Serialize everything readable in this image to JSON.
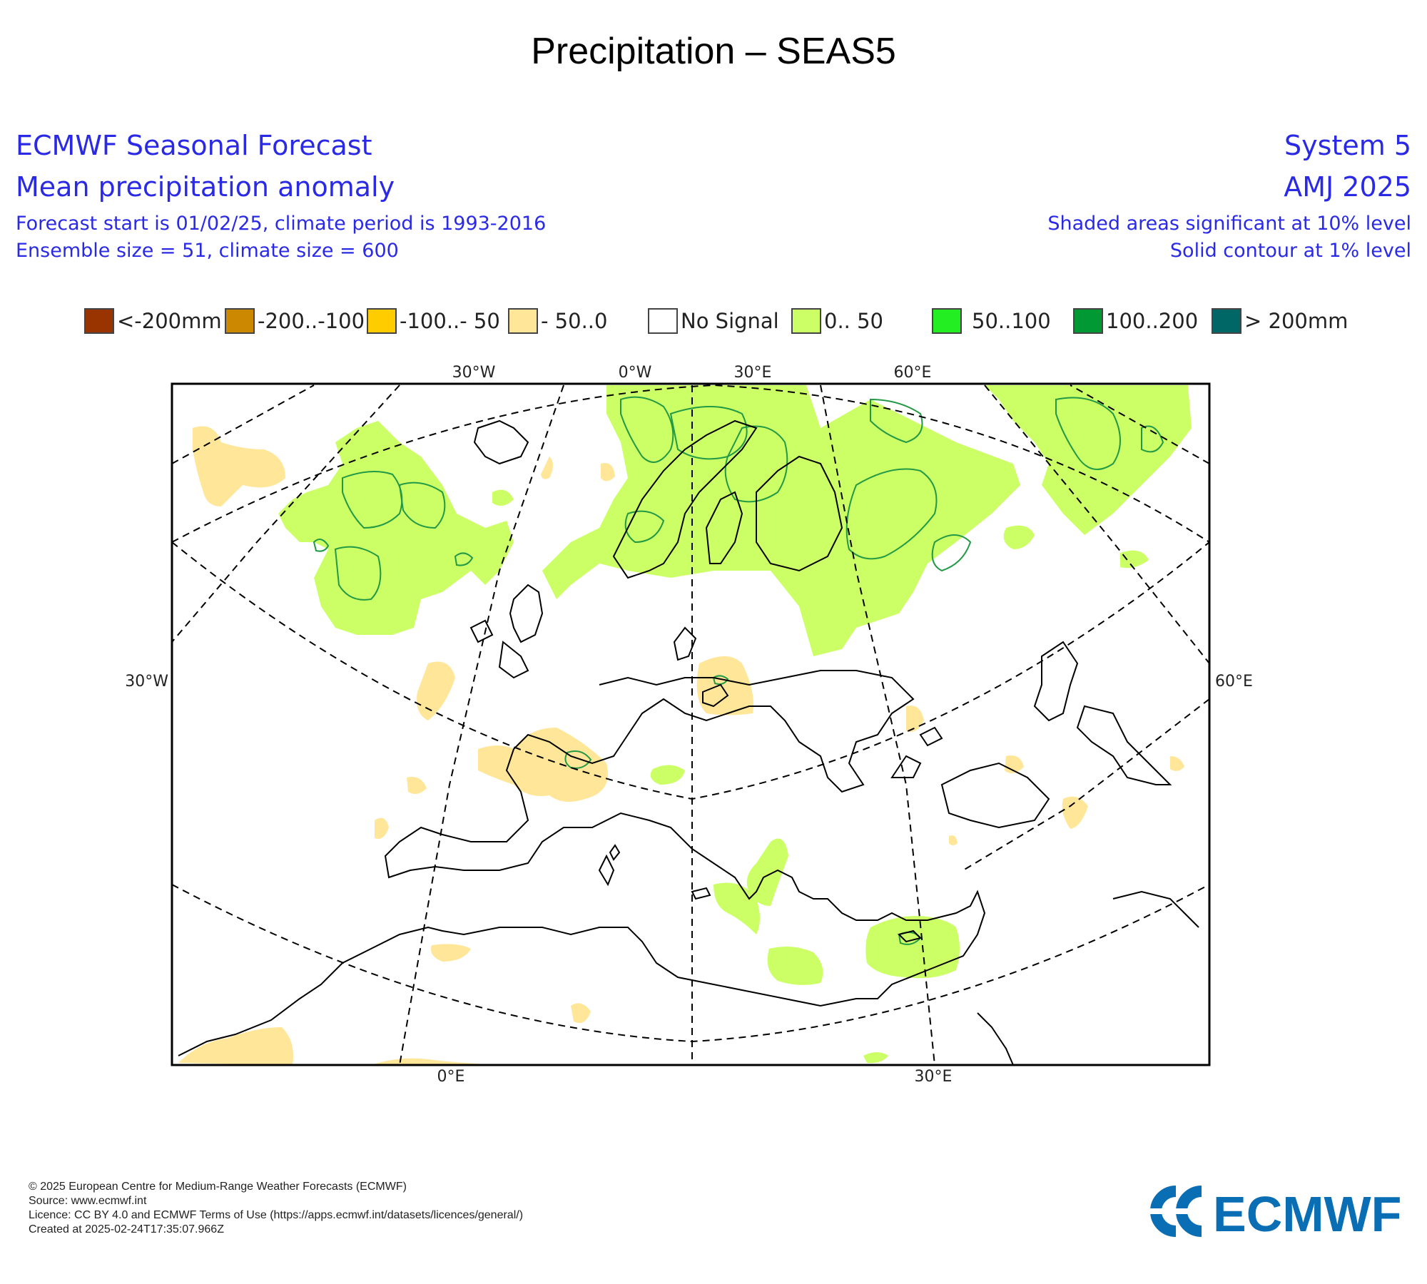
{
  "title": "Precipitation – SEAS5",
  "header": {
    "left": {
      "line1": "ECMWF Seasonal Forecast",
      "line2": "Mean precipitation anomaly",
      "line3": "Forecast start is 01/02/25, climate period is 1993-2016",
      "line4": "Ensemble size = 51, climate size = 600"
    },
    "right": {
      "line1": "System 5",
      "line2": "AMJ 2025",
      "line3": "Shaded areas significant at 10% level",
      "line4": "Solid contour at 1% level"
    }
  },
  "legend": [
    {
      "label": "<-200mm",
      "color": "#993300"
    },
    {
      "label": "-200..-100",
      "color": "#cc8800"
    },
    {
      "label": "-100..- 50",
      "color": "#ffcc00"
    },
    {
      "label": "- 50..0",
      "color": "#ffe699"
    },
    {
      "label": "No Signal",
      "color": "#ffffff"
    },
    {
      "label": "0.. 50",
      "color": "#ccff66"
    },
    {
      "label": "50..100",
      "color": "#22ee22"
    },
    {
      "label": "100..200",
      "color": "#009933"
    },
    {
      "label": "> 200mm",
      "color": "#006666"
    }
  ],
  "map": {
    "top_labels": [
      "30°W",
      "0°W",
      "30°E",
      "60°E"
    ],
    "left_label": "30°W",
    "right_label": "60°E",
    "bottom_labels": [
      "0°E",
      "30°E"
    ],
    "colors": {
      "positive": "#ccff66",
      "negative": "#ffe699",
      "contour_1pct": "#229944",
      "coast": "#000000",
      "grid": "#000000"
    }
  },
  "footer": {
    "line1": "© 2025 European Centre for Medium-Range Weather Forecasts (ECMWF)",
    "line2": "Source: www.ecmwf.int",
    "line3": "Licence: CC BY 4.0 and ECMWF Terms of Use (https://apps.ecmwf.int/datasets/licences/general/)",
    "line4": "Created at 2025-02-24T17:35:07.966Z"
  },
  "logo": {
    "text": "ECMWF",
    "color": "#0a6eb4"
  }
}
